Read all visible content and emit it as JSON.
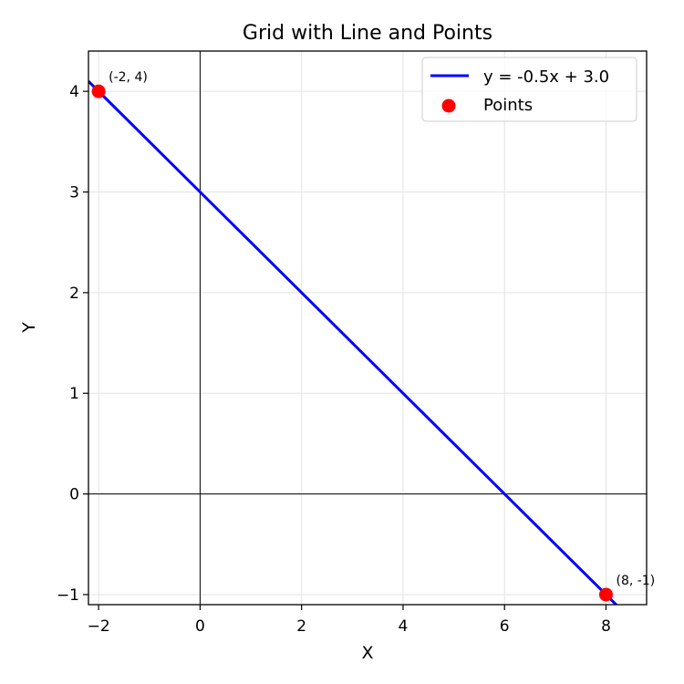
{
  "chart_data": {
    "type": "line",
    "title": "Grid with Line and Points",
    "xlabel": "X",
    "ylabel": "Y",
    "xlim": [
      -2.2,
      8.8
    ],
    "ylim": [
      -1.1,
      4.4
    ],
    "xticks": [
      -2,
      0,
      2,
      4,
      6,
      8
    ],
    "xtick_labels": [
      "−2",
      "0",
      "2",
      "4",
      "6",
      "8"
    ],
    "yticks": [
      -1,
      0,
      1,
      2,
      3,
      4
    ],
    "ytick_labels": [
      "−1",
      "0",
      "1",
      "2",
      "3",
      "4"
    ],
    "grid": true,
    "reference_lines": {
      "x": 0,
      "y": 0
    },
    "series": [
      {
        "name": "y = -0.5x + 3.0",
        "kind": "line",
        "color": "#0000ff",
        "x": [
          -2.2,
          8.8
        ],
        "y": [
          4.1,
          -1.4
        ]
      },
      {
        "name": "Points",
        "kind": "scatter",
        "color": "#ff0000",
        "points": [
          {
            "x": -2,
            "y": 4,
            "label": "(-2, 4)"
          },
          {
            "x": 8,
            "y": -1,
            "label": "(8, -1)"
          }
        ]
      }
    ],
    "legend": {
      "position": "top-right",
      "entries": [
        "y = -0.5x + 3.0",
        "Points"
      ]
    }
  }
}
